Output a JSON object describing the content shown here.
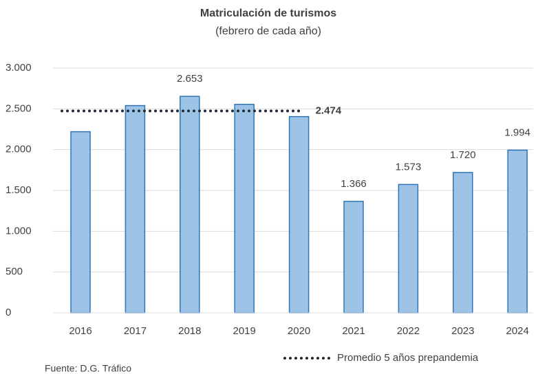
{
  "chart_data": {
    "type": "bar",
    "title": "Matriculación de turismos",
    "subtitle": "(febrero de cada año)",
    "categories": [
      "2016",
      "2017",
      "2018",
      "2019",
      "2020",
      "2021",
      "2022",
      "2023",
      "2024"
    ],
    "values": [
      2220,
      2540,
      2653,
      2555,
      2405,
      1366,
      1573,
      1720,
      1994
    ],
    "value_labels": [
      null,
      null,
      "2.653",
      null,
      null,
      "1.366",
      "1.573",
      "1.720",
      "1.994"
    ],
    "color": "#9dc3e6",
    "edge_color": "#2e75b6",
    "ylim": [
      0,
      3000
    ],
    "yticks": [
      0,
      500,
      {
        "value": 1000,
        "label": "1.000"
      },
      {
        "value": 1500,
        "label": "1.500"
      },
      {
        "value": 2000,
        "label": "2.000"
      },
      {
        "value": 2500,
        "label": "2.500"
      },
      {
        "value": 3000,
        "label": "3.000"
      }
    ],
    "grid": true,
    "reference_line": {
      "name": "Promedio 5 años prepandemia",
      "value": 2474,
      "label": "2.474",
      "span": [
        "2016",
        "2020"
      ],
      "color": "#222a35"
    },
    "source": "Fuente: D.G. Tráfico"
  }
}
